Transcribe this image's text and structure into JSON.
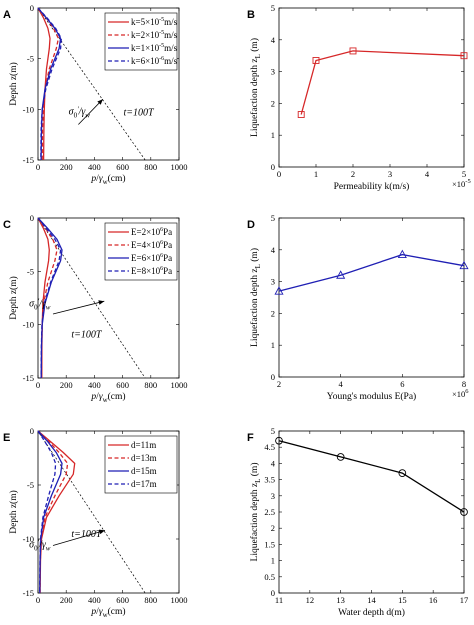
{
  "colors": {
    "red": "#d62728",
    "blue": "#1f1fb4",
    "black": "#000000",
    "grid": "#000000"
  },
  "chart_data": [
    {
      "panel_label": "A",
      "type": "line",
      "xlabel_parts": {
        "num": "p",
        "slash": "/",
        "den": "γ",
        "den_sub": "w",
        "unit": "(cm)"
      },
      "ylabel": "Depth z(m)",
      "xlim": [
        0,
        1000
      ],
      "ylim": [
        -15,
        0
      ],
      "xticks": [
        0,
        200,
        400,
        600,
        800,
        1000
      ],
      "yticks": [
        0,
        -5,
        -10,
        -15
      ],
      "legend": [
        {
          "text": "k=5×10",
          "exp": "-5",
          "unit": "m/s",
          "color": "red",
          "dash": false
        },
        {
          "text": "k=2×10",
          "exp": "-5",
          "unit": "m/s",
          "color": "red",
          "dash": true
        },
        {
          "text": "k=1×10",
          "exp": "-5",
          "unit": "m/s",
          "color": "blue",
          "dash": false
        },
        {
          "text": "k=6×10",
          "exp": "-6",
          "unit": "m/s",
          "color": "blue",
          "dash": true
        }
      ],
      "series": [
        {
          "color": "red",
          "dash": false,
          "points": [
            [
              0,
              0
            ],
            [
              40,
              -1
            ],
            [
              70,
              -2
            ],
            [
              85,
              -3
            ],
            [
              80,
              -4
            ],
            [
              60,
              -6
            ],
            [
              50,
              -8
            ],
            [
              45,
              -10
            ],
            [
              42,
              -12
            ],
            [
              40,
              -15
            ]
          ]
        },
        {
          "color": "red",
          "dash": true,
          "points": [
            [
              0,
              0
            ],
            [
              60,
              -1
            ],
            [
              110,
              -2
            ],
            [
              145,
              -3
            ],
            [
              130,
              -4
            ],
            [
              80,
              -6
            ],
            [
              50,
              -8
            ],
            [
              38,
              -10
            ],
            [
              32,
              -12
            ],
            [
              30,
              -15
            ]
          ]
        },
        {
          "color": "blue",
          "dash": false,
          "points": [
            [
              0,
              0
            ],
            [
              60,
              -1
            ],
            [
              120,
              -2
            ],
            [
              160,
              -3
            ],
            [
              150,
              -4
            ],
            [
              90,
              -6
            ],
            [
              50,
              -8
            ],
            [
              30,
              -10
            ],
            [
              25,
              -12
            ],
            [
              22,
              -15
            ]
          ]
        },
        {
          "color": "blue",
          "dash": true,
          "points": [
            [
              0,
              0
            ],
            [
              65,
              -1
            ],
            [
              125,
              -2
            ],
            [
              165,
              -3
            ],
            [
              160,
              -4
            ],
            [
              100,
              -6
            ],
            [
              55,
              -8
            ],
            [
              30,
              -10
            ],
            [
              22,
              -12
            ],
            [
              20,
              -15
            ]
          ]
        }
      ],
      "ref_line": [
        [
          0,
          0
        ],
        [
          760,
          -15
        ]
      ],
      "annotation": {
        "sigma": "σ",
        "sub0": "0",
        "prime": "'",
        "slash": "/γ",
        "subw": "w",
        "text_at": [
          430,
          -10.5
        ],
        "arrow_from": [
          570,
          -11.5
        ],
        "arrow_to": [
          460,
          -9
        ]
      },
      "time_label": "t=100T",
      "time_at": [
        820,
        -10.6
      ]
    },
    {
      "panel_label": "B",
      "type": "line",
      "xlabel": "Permeability k(m/s)",
      "ylabel": "Liquefaction depth z",
      "ylabel_sub": "L",
      "ylabel_unit": " (m)",
      "xlim": [
        0,
        5
      ],
      "ylim": [
        0,
        5
      ],
      "xticks": [
        0,
        1,
        2,
        3,
        4,
        5
      ],
      "yticks": [
        0,
        1,
        2,
        3,
        4,
        5
      ],
      "x_multiplier": "×10",
      "x_multiplier_exp": "-5",
      "marker": "square",
      "series": [
        {
          "color": "red",
          "points": [
            [
              0.6,
              1.65
            ],
            [
              1,
              3.35
            ],
            [
              2,
              3.65
            ],
            [
              5,
              3.5
            ]
          ]
        }
      ]
    },
    {
      "panel_label": "C",
      "type": "line",
      "xlabel_parts": {
        "num": "p",
        "slash": "/",
        "den": "γ",
        "den_sub": "w",
        "unit": "(cm)"
      },
      "ylabel": "Depth z(m)",
      "xlim": [
        0,
        1000
      ],
      "ylim": [
        -15,
        0
      ],
      "xticks": [
        0,
        200,
        400,
        600,
        800,
        1000
      ],
      "yticks": [
        0,
        -5,
        -10,
        -15
      ],
      "legend": [
        {
          "text": "E=2×10",
          "exp": "6",
          "unit": "Pa",
          "color": "red",
          "dash": false
        },
        {
          "text": "E=4×10",
          "exp": "6",
          "unit": "Pa",
          "color": "red",
          "dash": true
        },
        {
          "text": "E=6×10",
          "exp": "6",
          "unit": "Pa",
          "color": "blue",
          "dash": false
        },
        {
          "text": "E=8×10",
          "exp": "6",
          "unit": "Pa",
          "color": "blue",
          "dash": true
        }
      ],
      "series": [
        {
          "color": "red",
          "dash": false,
          "points": [
            [
              0,
              0
            ],
            [
              40,
              -1
            ],
            [
              70,
              -2
            ],
            [
              80,
              -3
            ],
            [
              75,
              -4
            ],
            [
              50,
              -6
            ],
            [
              35,
              -8
            ],
            [
              30,
              -10
            ],
            [
              28,
              -12
            ],
            [
              27,
              -15
            ]
          ]
        },
        {
          "color": "red",
          "dash": true,
          "points": [
            [
              0,
              0
            ],
            [
              55,
              -1
            ],
            [
              105,
              -2
            ],
            [
              135,
              -3
            ],
            [
              120,
              -4
            ],
            [
              70,
              -6
            ],
            [
              40,
              -8
            ],
            [
              30,
              -10
            ],
            [
              27,
              -12
            ],
            [
              25,
              -15
            ]
          ]
        },
        {
          "color": "blue",
          "dash": false,
          "points": [
            [
              0,
              0
            ],
            [
              70,
              -1
            ],
            [
              135,
              -2
            ],
            [
              170,
              -3
            ],
            [
              160,
              -4
            ],
            [
              95,
              -6
            ],
            [
              50,
              -8
            ],
            [
              30,
              -10
            ],
            [
              25,
              -12
            ],
            [
              23,
              -15
            ]
          ]
        },
        {
          "color": "blue",
          "dash": true,
          "points": [
            [
              0,
              0
            ],
            [
              60,
              -1
            ],
            [
              120,
              -2
            ],
            [
              160,
              -3
            ],
            [
              150,
              -4
            ],
            [
              90,
              -6
            ],
            [
              45,
              -8
            ],
            [
              28,
              -10
            ],
            [
              24,
              -12
            ],
            [
              22,
              -15
            ]
          ]
        }
      ],
      "ref_line": [
        [
          0,
          0
        ],
        [
          760,
          -15
        ]
      ],
      "annotation": {
        "sigma": "σ",
        "sub0": "0",
        "prime": "'",
        "slash": "/γ",
        "subw": "w",
        "text_at": [
          150,
          -8.3
        ],
        "arrow_from": [
          390,
          -9
        ],
        "arrow_to": [
          470,
          -7.8
        ]
      },
      "time_label": "t=100T",
      "time_at": [
        450,
        -11.2
      ]
    },
    {
      "panel_label": "D",
      "type": "line",
      "xlabel": "Young's modulus E(Pa)",
      "ylabel": "Liquefaction depth z",
      "ylabel_sub": "L",
      "ylabel_unit": " (m)",
      "xlim": [
        2,
        8
      ],
      "ylim": [
        0,
        5
      ],
      "xticks": [
        2,
        4,
        6,
        8
      ],
      "yticks": [
        0,
        1,
        2,
        3,
        4,
        5
      ],
      "x_multiplier": "×10",
      "x_multiplier_exp": "6",
      "marker": "triangle",
      "series": [
        {
          "color": "blue",
          "points": [
            [
              2,
              2.7
            ],
            [
              4,
              3.2
            ],
            [
              6,
              3.85
            ],
            [
              8,
              3.5
            ]
          ]
        }
      ]
    },
    {
      "panel_label": "E",
      "type": "line",
      "xlabel_parts": {
        "num": "p",
        "slash": "/",
        "den": "γ",
        "den_sub": "w",
        "unit": "(cm)"
      },
      "ylabel": "Depth z(m)",
      "xlim": [
        0,
        1000
      ],
      "ylim": [
        -15,
        0
      ],
      "xticks": [
        0,
        200,
        400,
        600,
        800,
        1000
      ],
      "yticks": [
        0,
        -5,
        -10,
        -15
      ],
      "legend": [
        {
          "text": "d=11m",
          "exp": "",
          "unit": "",
          "color": "red",
          "dash": false
        },
        {
          "text": "d=13m",
          "exp": "",
          "unit": "",
          "color": "red",
          "dash": true
        },
        {
          "text": "d=15m",
          "exp": "",
          "unit": "",
          "color": "blue",
          "dash": false
        },
        {
          "text": "d=17m",
          "exp": "",
          "unit": "",
          "color": "blue",
          "dash": true
        }
      ],
      "series": [
        {
          "color": "red",
          "dash": false,
          "points": [
            [
              0,
              0
            ],
            [
              90,
              -1
            ],
            [
              180,
              -2
            ],
            [
              260,
              -3
            ],
            [
              250,
              -4
            ],
            [
              150,
              -6
            ],
            [
              60,
              -8
            ],
            [
              25,
              -10
            ],
            [
              18,
              -12
            ],
            [
              15,
              -15
            ]
          ]
        },
        {
          "color": "red",
          "dash": true,
          "points": [
            [
              0,
              0
            ],
            [
              80,
              -1
            ],
            [
              150,
              -2
            ],
            [
              210,
              -3
            ],
            [
              200,
              -4
            ],
            [
              120,
              -6
            ],
            [
              50,
              -8
            ],
            [
              22,
              -10
            ],
            [
              16,
              -12
            ],
            [
              14,
              -15
            ]
          ]
        },
        {
          "color": "blue",
          "dash": false,
          "points": [
            [
              0,
              0
            ],
            [
              70,
              -1
            ],
            [
              130,
              -2
            ],
            [
              170,
              -3
            ],
            [
              160,
              -4
            ],
            [
              95,
              -6
            ],
            [
              40,
              -8
            ],
            [
              20,
              -10
            ],
            [
              15,
              -12
            ],
            [
              13,
              -15
            ]
          ]
        },
        {
          "color": "blue",
          "dash": true,
          "points": [
            [
              0,
              0
            ],
            [
              50,
              -1
            ],
            [
              95,
              -2
            ],
            [
              125,
              -3
            ],
            [
              120,
              -4
            ],
            [
              75,
              -6
            ],
            [
              35,
              -8
            ],
            [
              18,
              -10
            ],
            [
              14,
              -12
            ],
            [
              12,
              -15
            ]
          ]
        }
      ],
      "ref_line": [
        [
          0,
          0
        ],
        [
          760,
          -15
        ]
      ],
      "annotation": {
        "sigma": "σ",
        "sub0": "0",
        "prime": "'",
        "slash": "/γ",
        "subw": "w",
        "text_at": [
          150,
          -10.8
        ],
        "arrow_from": [
          390,
          -10.6
        ],
        "arrow_to": [
          475,
          -9.2
        ]
      },
      "time_label": "t=100T",
      "time_at": [
        450,
        -9.8
      ]
    },
    {
      "panel_label": "F",
      "type": "line",
      "xlabel": "Water depth d(m)",
      "ylabel": "Liquefaction depth z",
      "ylabel_sub": "L",
      "ylabel_unit": " (m)",
      "xlim": [
        11,
        17
      ],
      "ylim": [
        0,
        5
      ],
      "xticks": [
        11,
        12,
        13,
        14,
        15,
        16,
        17
      ],
      "yticks": [
        0,
        0.5,
        1,
        1.5,
        2,
        2.5,
        3,
        3.5,
        4,
        4.5,
        5
      ],
      "marker": "circle",
      "series": [
        {
          "color": "black",
          "points": [
            [
              11,
              4.7
            ],
            [
              13,
              4.2
            ],
            [
              15,
              3.7
            ],
            [
              17,
              2.5
            ]
          ]
        }
      ]
    }
  ]
}
